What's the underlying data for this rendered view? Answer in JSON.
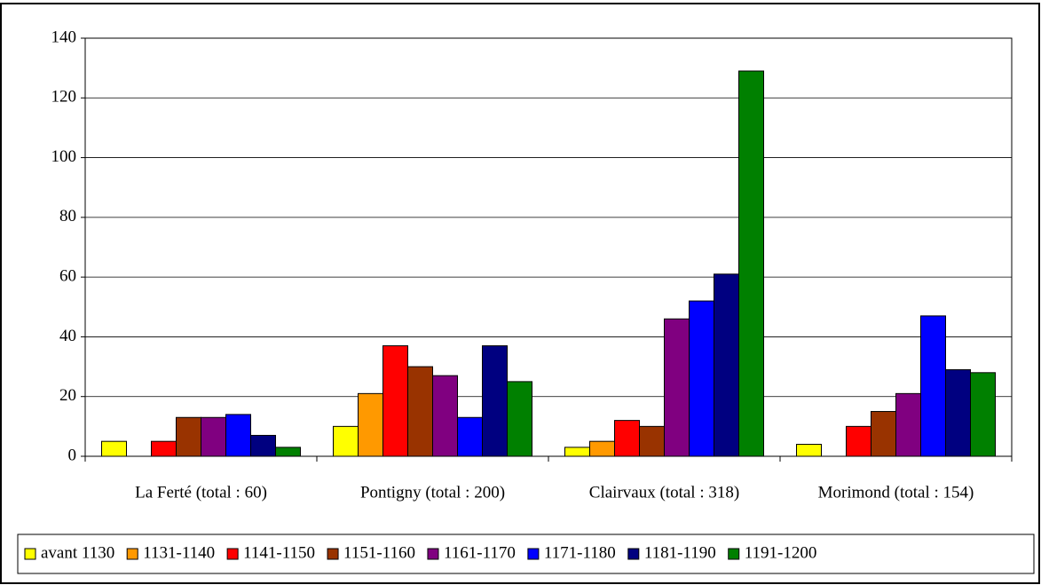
{
  "chart_data": {
    "type": "bar",
    "categories": [
      "La Ferté (total : 60)",
      "Pontigny (total : 200)",
      "Clairvaux (total : 318)",
      "Morimond (total : 154)"
    ],
    "series": [
      {
        "name": "avant 1130",
        "color": "#ffff00",
        "values": [
          5,
          10,
          3,
          4
        ]
      },
      {
        "name": "1131-1140",
        "color": "#ff9900",
        "values": [
          0,
          21,
          5,
          0
        ]
      },
      {
        "name": "1141-1150",
        "color": "#ff0000",
        "values": [
          5,
          37,
          12,
          10
        ]
      },
      {
        "name": "1151-1160",
        "color": "#993300",
        "values": [
          13,
          30,
          10,
          15
        ]
      },
      {
        "name": "1161-1170",
        "color": "#800080",
        "values": [
          13,
          27,
          46,
          21
        ]
      },
      {
        "name": "1171-1180",
        "color": "#0000ff",
        "values": [
          14,
          13,
          52,
          47
        ]
      },
      {
        "name": "1181-1190",
        "color": "#000080",
        "values": [
          7,
          37,
          61,
          29
        ]
      },
      {
        "name": "1191-1200",
        "color": "#008000",
        "values": [
          3,
          25,
          129,
          28
        ]
      }
    ],
    "ylim": [
      0,
      140
    ],
    "yticks": [
      0,
      20,
      40,
      60,
      80,
      100,
      120,
      140
    ],
    "grid": true,
    "legend": "bottom"
  }
}
